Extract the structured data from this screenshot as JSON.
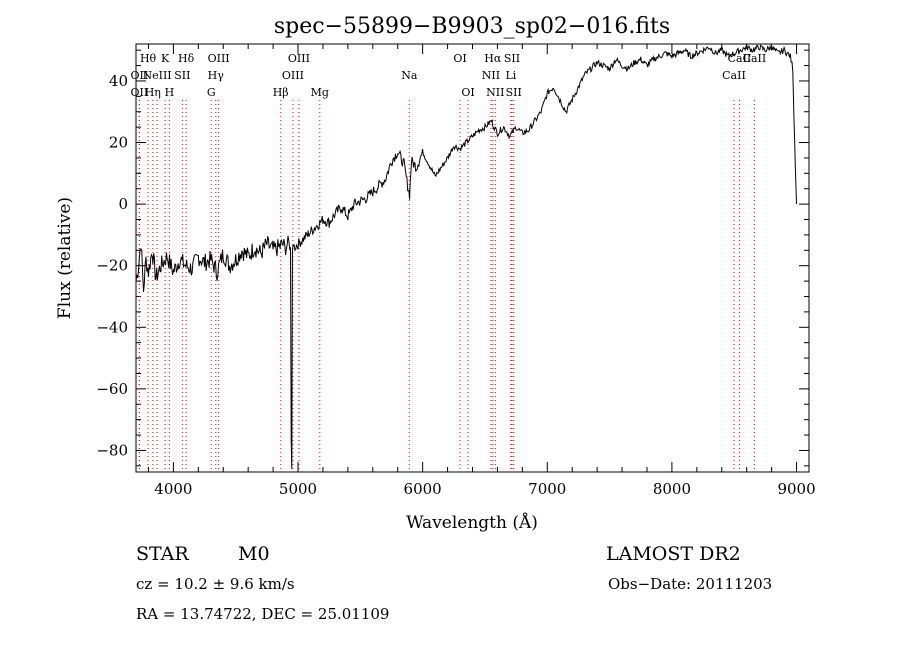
{
  "chart_data": {
    "type": "line",
    "title": "spec−55899−B9903_sp02−016.fits",
    "xlabel": "Wavelength (Å)",
    "ylabel": "Flux (relative)",
    "xlim": [
      3700,
      9100
    ],
    "ylim": [
      -87,
      52
    ],
    "x_ticks": [
      4000,
      5000,
      6000,
      7000,
      8000,
      9000
    ],
    "x_tick_labels": [
      "4000",
      "5000",
      "6000",
      "7000",
      "8000",
      "9000"
    ],
    "y_ticks": [
      -80,
      -60,
      -40,
      -20,
      0,
      20,
      40
    ],
    "y_tick_labels": [
      "−80",
      "−60",
      "−40",
      "−20",
      "0",
      "20",
      "40"
    ],
    "grid": false,
    "line_color": "#000000",
    "marker_color": "#ff0000",
    "series": [
      {
        "x": [
          3700,
          3720,
          3740,
          3760,
          3780,
          3800,
          3830,
          3860,
          3900,
          3950,
          4000,
          4050,
          4100,
          4150,
          4200,
          4250,
          4300,
          4350,
          4400,
          4450,
          4500,
          4550,
          4600,
          4650,
          4700,
          4750,
          4800,
          4850,
          4880,
          4900,
          4920,
          4940,
          4945,
          4950,
          4955,
          4960,
          4970,
          5000,
          5050,
          5100,
          5150,
          5200,
          5250,
          5300,
          5350,
          5400,
          5450,
          5500,
          5550,
          5600,
          5650,
          5700,
          5750,
          5800,
          5850,
          5880,
          5895,
          5910,
          5950,
          6000,
          6050,
          6100,
          6150,
          6200,
          6250,
          6300,
          6350,
          6400,
          6450,
          6500,
          6550,
          6600,
          6650,
          6700,
          6750,
          6800,
          6850,
          6900,
          6950,
          7000,
          7050,
          7100,
          7150,
          7200,
          7250,
          7300,
          7350,
          7400,
          7450,
          7500,
          7550,
          7600,
          7650,
          7700,
          7750,
          7800,
          7850,
          7900,
          7950,
          8000,
          8050,
          8100,
          8150,
          8200,
          8250,
          8300,
          8350,
          8400,
          8450,
          8500,
          8550,
          8600,
          8650,
          8700,
          8750,
          8800,
          8850,
          8900,
          8950,
          8970,
          8985,
          9000
        ],
        "y": [
          -25,
          -20,
          -12,
          -28,
          -18,
          -22,
          -15,
          -24,
          -20,
          -17,
          -22,
          -18,
          -20,
          -21,
          -17,
          -19,
          -18,
          -22,
          -16,
          -20,
          -18,
          -15,
          -17,
          -14,
          -16,
          -13,
          -15,
          -14,
          -13,
          -15,
          -12,
          -14,
          -77,
          -86,
          -16,
          -13,
          -14,
          -13,
          -11,
          -9,
          -7,
          -5,
          -6,
          -3,
          -1,
          -4,
          0,
          1,
          2,
          4,
          6,
          8,
          14,
          17,
          13,
          6,
          3,
          14,
          12,
          17,
          13,
          9,
          12,
          15,
          19,
          18,
          20,
          22,
          24,
          25,
          27,
          23,
          25,
          22,
          25,
          23,
          24,
          27,
          30,
          36,
          38,
          34,
          30,
          34,
          38,
          42,
          44,
          46,
          45,
          44,
          47,
          45,
          44,
          46,
          47,
          45,
          47,
          48,
          49,
          48,
          49,
          50,
          48,
          49,
          50,
          51,
          49,
          50,
          48,
          49,
          50,
          51,
          50,
          51,
          50,
          51,
          49,
          50,
          48,
          44,
          20,
          0
        ]
      }
    ],
    "line_markers": [
      {
        "x": 3797,
        "label": "Hθ",
        "row": 0
      },
      {
        "x": 3727,
        "label": "OII",
        "row": 1
      },
      {
        "x": 3727,
        "label": "OII",
        "row": 2
      },
      {
        "x": 3835,
        "label": "Hη",
        "row": 2
      },
      {
        "x": 3869,
        "label": "NeIII",
        "row": 1
      },
      {
        "x": 3934,
        "label": "K",
        "row": 0
      },
      {
        "x": 3968,
        "label": "H",
        "row": 2
      },
      {
        "x": 4072,
        "label": "SII",
        "row": 1
      },
      {
        "x": 4102,
        "label": "Hδ",
        "row": 0
      },
      {
        "x": 4340,
        "label": "Hγ",
        "row": 1
      },
      {
        "x": 4304,
        "label": "G",
        "row": 2
      },
      {
        "x": 4363,
        "label": "OIII",
        "row": 0
      },
      {
        "x": 4861,
        "label": "Hβ",
        "row": 2
      },
      {
        "x": 4959,
        "label": "OIII",
        "row": 1
      },
      {
        "x": 5007,
        "label": "OIII",
        "row": 0
      },
      {
        "x": 5175,
        "label": "Mg",
        "row": 2
      },
      {
        "x": 5893,
        "label": "Na",
        "row": 1
      },
      {
        "x": 6300,
        "label": "OI",
        "row": 0
      },
      {
        "x": 6364,
        "label": "OI",
        "row": 2
      },
      {
        "x": 6548,
        "label": "NII",
        "row": 1
      },
      {
        "x": 6563,
        "label": "Hα",
        "row": 0
      },
      {
        "x": 6583,
        "label": "NII",
        "row": 2
      },
      {
        "x": 6708,
        "label": "Li",
        "row": 1
      },
      {
        "x": 6717,
        "label": "SII",
        "row": 0
      },
      {
        "x": 6731,
        "label": "SII",
        "row": 2
      },
      {
        "x": 8498,
        "label": "CaII",
        "row": 1
      },
      {
        "x": 8542,
        "label": "CaII",
        "row": 0
      },
      {
        "x": 8662,
        "label": "CaII",
        "row": 0
      }
    ]
  },
  "info": {
    "class_label": "STAR",
    "subclass_label": "M0",
    "survey_label": "LAMOST DR2",
    "cz_text": "cz = 10.2 ± 9.6 km/s",
    "obs_date_text": "Obs−Date: 20111203",
    "coords_text": "RA =  13.74722, DEC =  25.01109"
  }
}
